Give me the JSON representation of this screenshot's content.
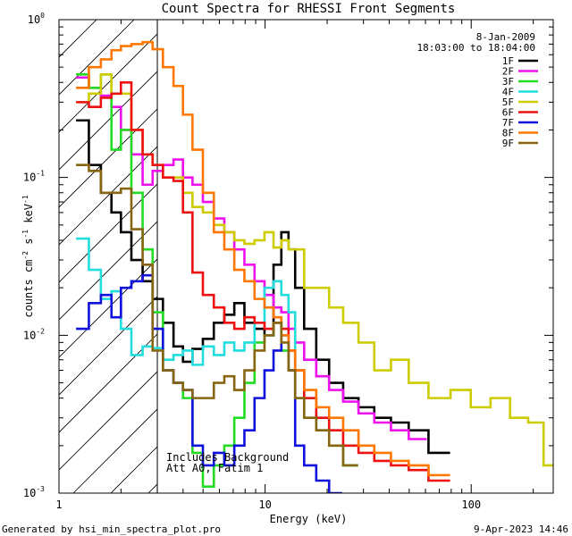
{
  "chart_data": {
    "type": "line",
    "title": "Count Spectra for RHESSI Front Segments",
    "xlabel": "Energy (keV)",
    "ylabel": "counts cm^-2 s^-1 keV^-1",
    "xscale": "log",
    "yscale": "log",
    "xlim": [
      1,
      250
    ],
    "ylim": [
      0.001,
      1
    ],
    "x_ticks": [
      {
        "value": 1,
        "label": "1"
      },
      {
        "value": 10,
        "label": "10"
      },
      {
        "value": 100,
        "label": "100"
      }
    ],
    "y_ticks": [
      {
        "value": 0.001,
        "base": "10",
        "exp": "-3"
      },
      {
        "value": 0.01,
        "base": "10",
        "exp": "-2"
      },
      {
        "value": 0.1,
        "base": "10",
        "exp": "-1"
      },
      {
        "value": 1,
        "base": "10",
        "exp": "0"
      }
    ],
    "hatched_region_max_keV": 3.0,
    "date": "8-Jan-2009",
    "time_range": "18:03:00 to 18:04:00",
    "annotations": [
      "Includes Background",
      "Att A0, Fatim 1"
    ],
    "series": [
      {
        "name": "1F",
        "color": "#000000",
        "energy": [
          1.3,
          1.5,
          1.7,
          1.9,
          2.1,
          2.4,
          2.7,
          3.0,
          3.4,
          3.8,
          4.2,
          4.7,
          5.3,
          6.0,
          6.7,
          7.5,
          8.4,
          9.4,
          10.5,
          11.5,
          12.5,
          13.5,
          14.5,
          16.5,
          19,
          22,
          26,
          31,
          37,
          45,
          55,
          70
        ],
        "values": [
          0.23,
          0.12,
          0.08,
          0.06,
          0.045,
          0.03,
          0.022,
          0.017,
          0.012,
          0.0085,
          0.0068,
          0.0082,
          0.0095,
          0.012,
          0.0135,
          0.016,
          0.012,
          0.011,
          0.01,
          0.028,
          0.045,
          0.035,
          0.02,
          0.011,
          0.007,
          0.005,
          0.004,
          0.0035,
          0.003,
          0.0028,
          0.0025,
          0.0018
        ]
      },
      {
        "name": "2F",
        "color": "#ee11ee",
        "energy": [
          1.3,
          1.5,
          1.7,
          1.9,
          2.1,
          2.4,
          2.7,
          3.0,
          3.4,
          3.8,
          4.2,
          4.7,
          5.3,
          6.0,
          6.7,
          7.5,
          8.4,
          9.4,
          10.5,
          11.5,
          12.5,
          13.5,
          14.5,
          16.5,
          19,
          22,
          26,
          31,
          37,
          45,
          55
        ],
        "values": [
          0.43,
          0.37,
          0.33,
          0.28,
          0.2,
          0.14,
          0.09,
          0.11,
          0.12,
          0.13,
          0.1,
          0.09,
          0.07,
          0.055,
          0.045,
          0.035,
          0.028,
          0.022,
          0.018,
          0.015,
          0.014,
          0.011,
          0.009,
          0.007,
          0.0055,
          0.0045,
          0.0038,
          0.0032,
          0.0028,
          0.0025,
          0.0022
        ]
      },
      {
        "name": "3F",
        "color": "#22dd22",
        "energy": [
          1.3,
          1.5,
          1.7,
          1.9,
          2.1,
          2.4,
          2.7,
          3.0,
          3.4,
          3.8,
          4.2,
          4.7,
          5.3,
          6.0,
          6.7,
          7.5,
          8.4,
          9.4,
          10.5,
          11.5,
          12.5,
          13.5,
          14.5,
          16.5,
          19,
          22,
          26
        ],
        "values": [
          0.45,
          0.37,
          0.45,
          0.15,
          0.2,
          0.08,
          0.035,
          0.014,
          0.006,
          0.005,
          0.004,
          0.0018,
          0.0011,
          0.0015,
          0.002,
          0.003,
          0.005,
          0.009,
          0.01,
          0.012,
          0.008,
          0.006,
          0.004,
          0.003,
          0.0025,
          0.002,
          0.0015
        ]
      },
      {
        "name": "4F",
        "color": "#22dddd",
        "energy": [
          1.3,
          1.5,
          1.7,
          1.9,
          2.1,
          2.4,
          2.7,
          3.0,
          3.4,
          3.8,
          4.2,
          4.7,
          5.3,
          6.0,
          6.7,
          7.5,
          8.4,
          9.4,
          10.5,
          11.5,
          12.5,
          13.5,
          14.5,
          16.5,
          19,
          22
        ],
        "values": [
          0.041,
          0.026,
          0.017,
          0.019,
          0.011,
          0.0075,
          0.0085,
          0.0083,
          0.007,
          0.0075,
          0.008,
          0.0065,
          0.0085,
          0.0075,
          0.009,
          0.008,
          0.009,
          0.012,
          0.02,
          0.022,
          0.018,
          0.014,
          0.006,
          0.004,
          0.003,
          0.0025
        ]
      },
      {
        "name": "5F",
        "color": "#cccc00",
        "energy": [
          1.3,
          1.5,
          1.7,
          1.9,
          2.1,
          2.4,
          2.7,
          3.0,
          3.4,
          3.8,
          4.2,
          4.7,
          5.3,
          6.0,
          6.7,
          7.5,
          8.4,
          9.4,
          10.5,
          11.5,
          12.5,
          13.5,
          14.5,
          16.5,
          19,
          22,
          26,
          31,
          37,
          45,
          55,
          70,
          90,
          110,
          140,
          170,
          210,
          240
        ],
        "values": [
          0.3,
          0.34,
          0.45,
          0.34,
          0.34,
          0.2,
          0.14,
          0.12,
          0.1,
          0.1,
          0.08,
          0.065,
          0.06,
          0.05,
          0.045,
          0.04,
          0.038,
          0.04,
          0.045,
          0.036,
          0.04,
          0.035,
          0.035,
          0.02,
          0.02,
          0.015,
          0.012,
          0.009,
          0.006,
          0.007,
          0.005,
          0.004,
          0.0045,
          0.0035,
          0.004,
          0.003,
          0.0028,
          0.0015
        ]
      },
      {
        "name": "6F",
        "color": "#ee1111",
        "energy": [
          1.3,
          1.5,
          1.7,
          1.9,
          2.1,
          2.4,
          2.7,
          3.0,
          3.4,
          3.8,
          4.2,
          4.7,
          5.3,
          6.0,
          6.7,
          7.5,
          8.4,
          9.4,
          10.5,
          11.5,
          12.5,
          13.5,
          14.5,
          16.5,
          19,
          22,
          26,
          31,
          37,
          45,
          55,
          70
        ],
        "values": [
          0.3,
          0.28,
          0.32,
          0.34,
          0.4,
          0.2,
          0.14,
          0.12,
          0.1,
          0.095,
          0.06,
          0.025,
          0.018,
          0.015,
          0.012,
          0.011,
          0.013,
          0.012,
          0.011,
          0.012,
          0.011,
          0.008,
          0.006,
          0.004,
          0.003,
          0.0025,
          0.002,
          0.0018,
          0.0016,
          0.0015,
          0.0014,
          0.0012
        ]
      },
      {
        "name": "7F",
        "color": "#1111dd",
        "energy": [
          1.3,
          1.5,
          1.7,
          1.9,
          2.1,
          2.4,
          2.7,
          3.0,
          3.4,
          3.8,
          4.2,
          4.7,
          5.3,
          6.0,
          6.7,
          7.5,
          8.4,
          9.4,
          10.5,
          11.5,
          12.5,
          13.5,
          14.5,
          16.5,
          19,
          22
        ],
        "values": [
          0.011,
          0.016,
          0.018,
          0.013,
          0.02,
          0.022,
          0.024,
          0.011,
          0.006,
          0.005,
          0.0045,
          0.002,
          0.0015,
          0.0018,
          0.0015,
          0.002,
          0.0025,
          0.004,
          0.006,
          0.008,
          0.01,
          0.006,
          0.002,
          0.0015,
          0.0012,
          0.001
        ]
      },
      {
        "name": "8F",
        "color": "#ff7700",
        "energy": [
          1.3,
          1.5,
          1.7,
          1.9,
          2.1,
          2.4,
          2.7,
          3.0,
          3.4,
          3.8,
          4.2,
          4.7,
          5.3,
          6.0,
          6.7,
          7.5,
          8.4,
          9.4,
          10.5,
          11.5,
          12.5,
          13.5,
          14.5,
          16.5,
          19,
          22,
          26,
          31,
          37,
          45,
          55,
          70
        ],
        "values": [
          0.37,
          0.5,
          0.56,
          0.64,
          0.68,
          0.7,
          0.72,
          0.65,
          0.5,
          0.38,
          0.25,
          0.15,
          0.08,
          0.045,
          0.035,
          0.026,
          0.022,
          0.017,
          0.015,
          0.013,
          0.01,
          0.008,
          0.006,
          0.0045,
          0.0035,
          0.003,
          0.0025,
          0.002,
          0.0018,
          0.0016,
          0.0015,
          0.0013
        ]
      },
      {
        "name": "9F",
        "color": "#886611",
        "energy": [
          1.3,
          1.5,
          1.7,
          1.9,
          2.1,
          2.4,
          2.7,
          3.0,
          3.4,
          3.8,
          4.2,
          4.7,
          5.3,
          6.0,
          6.7,
          7.5,
          8.4,
          9.4,
          10.5,
          11.5,
          12.5,
          13.5,
          14.5,
          16.5,
          19,
          22,
          26
        ],
        "values": [
          0.12,
          0.11,
          0.08,
          0.08,
          0.085,
          0.047,
          0.028,
          0.008,
          0.006,
          0.005,
          0.0045,
          0.004,
          0.004,
          0.005,
          0.0055,
          0.0045,
          0.006,
          0.008,
          0.01,
          0.012,
          0.009,
          0.006,
          0.004,
          0.003,
          0.0025,
          0.002,
          0.0015
        ]
      }
    ]
  },
  "footer": {
    "generated_by": "Generated by hsi_min_spectra_plot.pro",
    "timestamp": "9-Apr-2023 14:46"
  }
}
